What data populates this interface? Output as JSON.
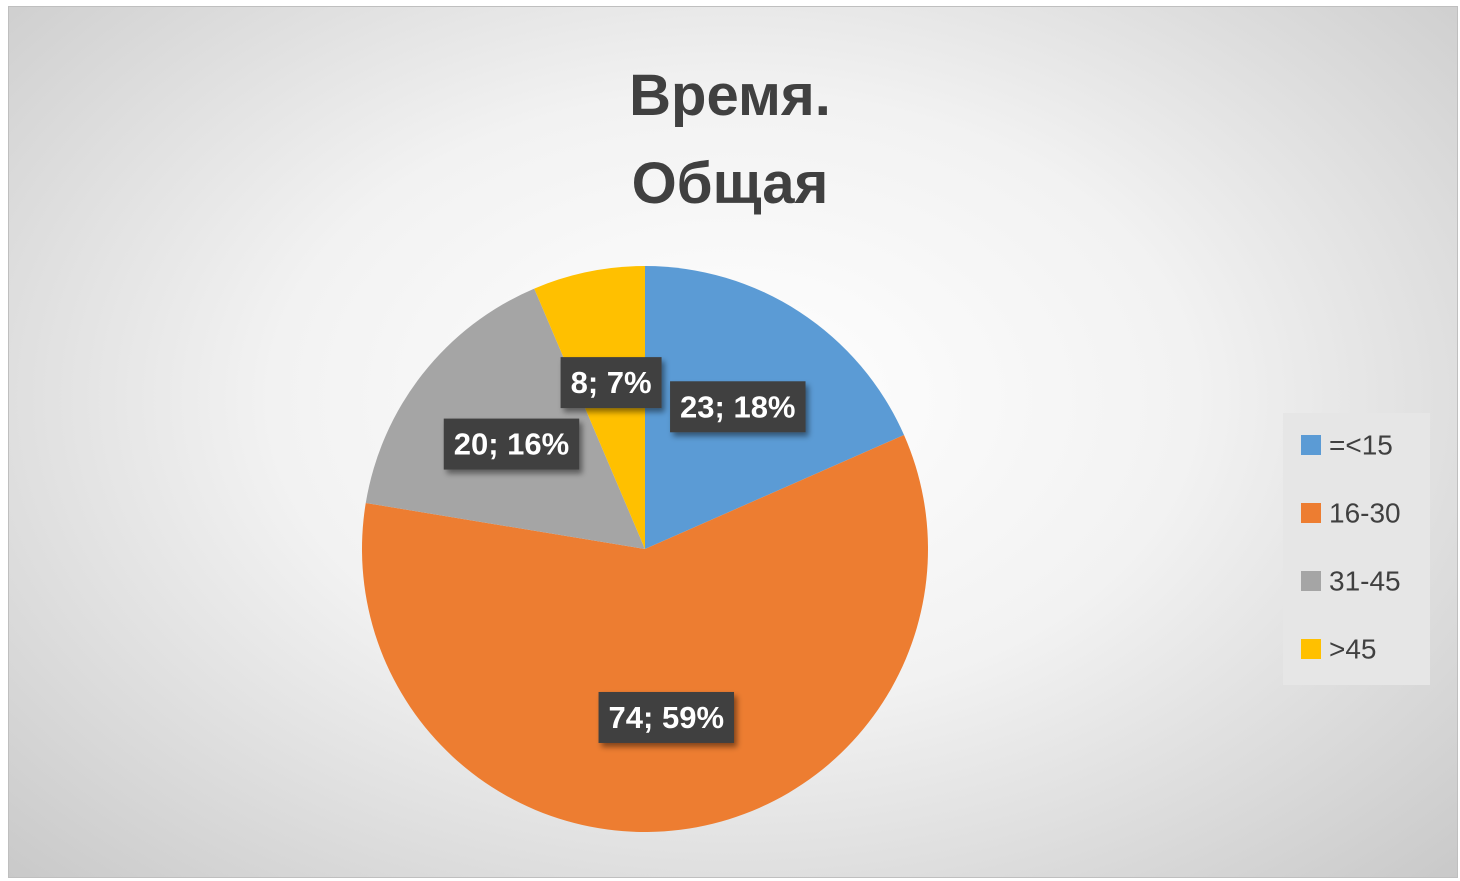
{
  "chart_data": {
    "type": "pie",
    "title": "Время. Общая",
    "categories": [
      "=<15",
      "16-30",
      "31-45",
      ">45"
    ],
    "values": [
      23,
      74,
      20,
      8
    ],
    "value_labels": [
      "23; 18%",
      "74; 59%",
      "20; 16%",
      "8; 7%"
    ],
    "colors": [
      "#5b9bd5",
      "#ed7d31",
      "#a5a5a5",
      "#ffc000"
    ],
    "legend": "right"
  }
}
